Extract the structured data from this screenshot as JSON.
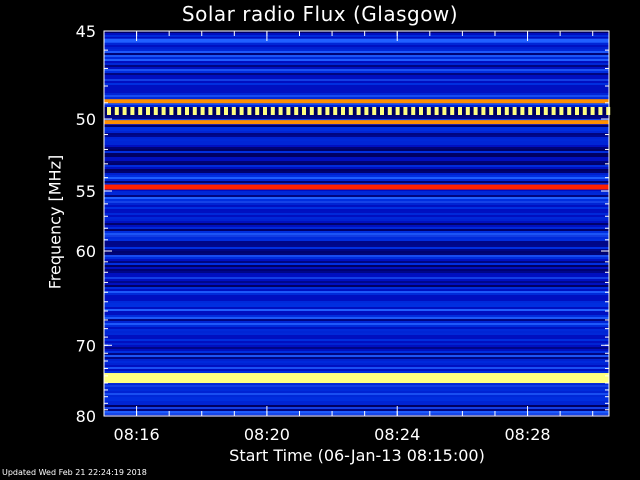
{
  "chart_data": {
    "type": "heatmap",
    "title": "Solar radio Flux (Glasgow)",
    "xlabel": "Start Time (06-Jan-13 08:15:00)",
    "ylabel": "Frequency [MHz]",
    "x_unit": "minutes",
    "xlim": [
      "08:15:00",
      "08:30:30"
    ],
    "ylim": [
      45,
      80
    ],
    "y_scale": "reciprocal (frequency increases downward)",
    "x_ticks": [
      "08:16",
      "08:20",
      "08:24",
      "08:28"
    ],
    "y_ticks": [
      45,
      50,
      55,
      60,
      70,
      80
    ],
    "colormap": [
      "#000060",
      "#0010c0",
      "#0030e0",
      "#2060ff",
      "#ff2000",
      "#ff9000",
      "#ffff80"
    ],
    "background_level": "low (blue)",
    "bands": [
      {
        "freq_mhz": 45.5,
        "level": "medium"
      },
      {
        "freq_mhz": 48.9,
        "level": "high"
      },
      {
        "freq_mhz": 49.5,
        "level": "high, periodic pulses"
      },
      {
        "freq_mhz": 50.2,
        "level": "high"
      },
      {
        "freq_mhz": 54.7,
        "level": "medium-high (red)"
      },
      {
        "freq_mhz": 74.3,
        "level": "saturated (yellow)"
      }
    ],
    "grid": false
  },
  "footer": "Updated Wed Feb 21 22:24:19 2018"
}
